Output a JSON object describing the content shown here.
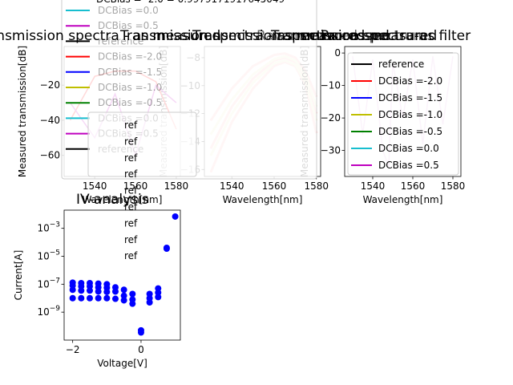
{
  "figure": {
    "panels": [
      {
        "id": "p1",
        "title": "Transmission spectra - as measured",
        "xlabel": "Wavelength[nm]",
        "ylabel": "Measured transmission[dB]"
      },
      {
        "id": "p2",
        "title": "Transmission spectra - as measured",
        "xlabel": "Wavelength[nm]",
        "ylabel": "Measured transmission[dB]"
      },
      {
        "id": "p3",
        "title": "Transmission spectra - as measured",
        "xlabel": "Wavelength[nm]",
        "ylabel": "Measured transmission[dB]"
      },
      {
        "id": "p4",
        "title": "Transmission spectra-as filter",
        "xlabel": "Wavelength[nm]",
        "ylabel": "Measured transmission[dB]"
      },
      {
        "id": "p5",
        "title": "IV-analysis",
        "xlabel": "Voltage[V]",
        "ylabel": "Current[A]"
      }
    ],
    "overlay_titles": [
      "Raw measured spectrum",
      "Processed"
    ],
    "legend1_header": "DCBias = -2.0 = 0.9979171917645049",
    "legend1_entries": [
      {
        "label": "DCBias =0.0",
        "color": "#17becf"
      },
      {
        "label": "DCBias =0.5",
        "color": "#bf00bf"
      },
      {
        "label": "reference",
        "color": "#000000"
      },
      {
        "label": "DCBias =-2.0",
        "color": "#ff0000"
      },
      {
        "label": "DCBias =-1.5",
        "color": "#0000ff"
      },
      {
        "label": "DCBias =-1.0",
        "color": "#bfbf00"
      },
      {
        "label": "DCBias =-0.5",
        "color": "#008000"
      },
      {
        "label": "DCBias =0.0",
        "color": "#17becf"
      },
      {
        "label": "DCBias =0.5",
        "color": "#bf00bf"
      },
      {
        "label": "reference",
        "color": "#000000"
      }
    ],
    "legend2_entries": [
      "ref",
      "ref",
      "ref",
      "ref",
      "ref",
      "ref",
      "ref",
      "ref",
      "ref"
    ],
    "legend4_entries": [
      {
        "label": "reference",
        "color": "#000000"
      },
      {
        "label": "DCBias =-2.0",
        "color": "#ff0000"
      },
      {
        "label": "DCBias =-1.5",
        "color": "#0000ff"
      },
      {
        "label": "DCBias =-1.0",
        "color": "#bfbf00"
      },
      {
        "label": "DCBias =-0.5",
        "color": "#008000"
      },
      {
        "label": "DCBias =0.0",
        "color": "#17becf"
      },
      {
        "label": "DCBias =0.5",
        "color": "#bf00bf"
      }
    ]
  },
  "chart_data": [
    {
      "type": "line",
      "title": "Transmission spectra - as measured",
      "xlabel": "Wavelength[nm]",
      "ylabel": "Measured transmission[dB]",
      "xlim": [
        1525,
        1582
      ],
      "ylim": [
        -72,
        2
      ],
      "xticks": [
        1540,
        1560,
        1580
      ],
      "yticks": [
        -20,
        -40,
        -60
      ],
      "series": [
        {
          "name": "DCBias =-2.0",
          "color": "#ff0000",
          "x": [
            1528,
            1540,
            1550,
            1560,
            1570,
            1580
          ],
          "y": [
            -40,
            -15,
            -12,
            -12,
            -18,
            -45
          ]
        },
        {
          "name": "DCBias =0.5",
          "color": "#bf00bf",
          "x": [
            1528,
            1540,
            1550,
            1560,
            1570,
            1580
          ],
          "y": [
            -30,
            -50,
            -25,
            -60,
            -20,
            -30
          ]
        }
      ]
    },
    {
      "type": "line",
      "title": "Raw measured spectrum",
      "xlabel": "Wavelength[nm]",
      "ylabel": "Measured transmission[dB]",
      "xlim": [
        1527,
        1582
      ],
      "ylim": [
        -16.5,
        -7.2
      ],
      "xticks": [
        1540,
        1560,
        1580
      ],
      "yticks": [
        -8,
        -10,
        -12,
        -14,
        -16
      ],
      "series": [
        {
          "color": "#ffc0c0",
          "x": [
            1530,
            1540,
            1550,
            1560,
            1565,
            1570,
            1575,
            1580
          ],
          "y": [
            -12.5,
            -10.2,
            -8.6,
            -7.8,
            -7.7,
            -8.0,
            -9.0,
            -10.8
          ]
        },
        {
          "color": "#ffc0c0",
          "x": [
            1530,
            1540,
            1550,
            1560,
            1565,
            1570,
            1575,
            1580
          ],
          "y": [
            -16.2,
            -12.6,
            -10.2,
            -8.6,
            -8.3,
            -8.6,
            -10.0,
            -13.4
          ]
        },
        {
          "color": "#ffc0c0",
          "x": [
            1530,
            1540,
            1550,
            1560,
            1565,
            1570,
            1575,
            1580
          ],
          "y": [
            -14.5,
            -11.5,
            -9.5,
            -8.2,
            -8.0,
            -8.3,
            -9.5,
            -12.0
          ]
        },
        {
          "color": "#f0f0c8",
          "x": [
            1530,
            1540,
            1550,
            1560,
            1565,
            1570,
            1575,
            1580
          ],
          "y": [
            -15.0,
            -12.0,
            -9.8,
            -8.4,
            -8.2,
            -8.5,
            -9.8,
            -12.5
          ]
        },
        {
          "color": "#f0f0c8",
          "x": [
            1530,
            1540,
            1550,
            1560,
            1565,
            1570,
            1575,
            1580
          ],
          "y": [
            -13.5,
            -11.0,
            -9.2,
            -8.1,
            -7.9,
            -8.2,
            -9.3,
            -11.5
          ]
        }
      ]
    },
    {
      "type": "line",
      "title": "Processed spectra-as filter",
      "xlabel": "Wavelength[nm]",
      "ylabel": "Measured transmission[dB]",
      "xlim": [
        1526,
        1584
      ],
      "ylim": [
        -38,
        2
      ],
      "xticks": [
        1540,
        1560,
        1580
      ],
      "yticks": [
        0,
        -10,
        -20,
        -30
      ],
      "series": [
        {
          "name": "reference",
          "color": "#000000",
          "x": [
            1530,
            1580
          ],
          "y": [
            0,
            0
          ]
        },
        {
          "name": "DCBias =0.5",
          "color": "#e0b0e0",
          "x": [
            1530,
            1535,
            1540,
            1545,
            1548,
            1550,
            1555,
            1560,
            1565,
            1570,
            1575,
            1580
          ],
          "y": [
            -1,
            -25,
            -2,
            -30,
            -35,
            -3,
            -20,
            -2,
            -28,
            -1,
            -22,
            -1
          ]
        }
      ]
    },
    {
      "type": "scatter",
      "title": "IV-analysis",
      "xlabel": "Voltage[V]",
      "ylabel": "Current[A]",
      "yscale": "log",
      "xlim": [
        -2.25,
        1.15
      ],
      "ylim": [
        1e-11,
        0.02
      ],
      "xticks": [
        -2,
        0
      ],
      "yticks": [
        0.001,
        1e-05,
        1e-07,
        1e-09
      ],
      "series": [
        {
          "color": "#0000ff",
          "x": [
            -2.0,
            -2.0,
            -2.0,
            -2.0,
            -1.75,
            -1.75,
            -1.75,
            -1.75,
            -1.5,
            -1.5,
            -1.5,
            -1.5,
            -1.25,
            -1.25,
            -1.25,
            -1.25,
            -1.0,
            -1.0,
            -1.0,
            -1.0,
            -0.75,
            -0.75,
            -0.75,
            -0.5,
            -0.5,
            -0.5,
            -0.25,
            -0.25,
            -0.25,
            0.0,
            0.0,
            0.25,
            0.25,
            0.25,
            0.5,
            0.5,
            0.5,
            0.75,
            0.75,
            1.0
          ],
          "y": [
            1.3e-07,
            8e-08,
            4e-08,
            1e-08,
            1.2e-07,
            7e-08,
            3.5e-08,
            1e-08,
            1.2e-07,
            7e-08,
            3.5e-08,
            1e-08,
            1.1e-07,
            6e-08,
            3e-08,
            1e-08,
            1e-07,
            5.5e-08,
            2.8e-08,
            1e-08,
            6e-08,
            3e-08,
            9e-09,
            4e-08,
            1.5e-08,
            7e-09,
            2e-08,
            8e-09,
            4e-09,
            5e-11,
            3.5e-11,
            2e-08,
            1e-08,
            5e-09,
            5e-08,
            2.5e-08,
            1.2e-08,
            4e-05,
            3.5e-05,
            0.007
          ]
        }
      ]
    }
  ]
}
